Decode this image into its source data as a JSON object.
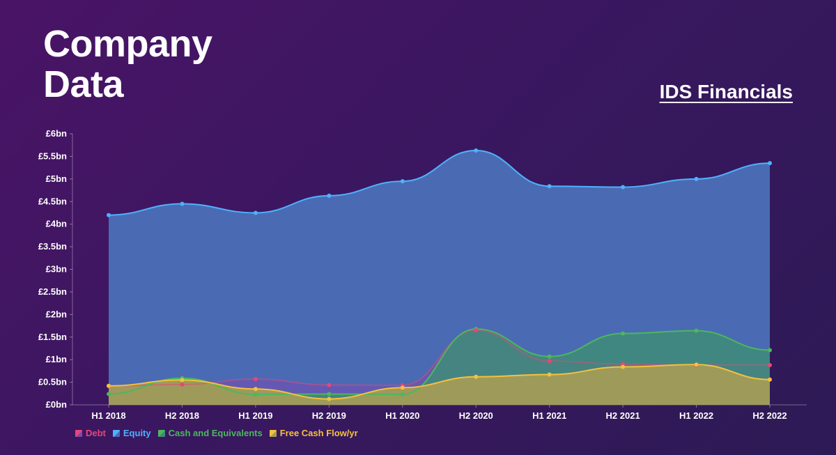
{
  "header": {
    "title_line1": "Company",
    "title_line2": "Data",
    "subtitle": "IDS Financials"
  },
  "colors": {
    "debt": "#e8457a",
    "equity": "#4db2ff",
    "cash": "#4bb85c",
    "fcf": "#f5c13c",
    "equity_fill": "#4a6bb3",
    "cash_fill": "#3f8c78",
    "fcf_fill": "#a79d55",
    "debt_fill": "#7a4ab0"
  },
  "chart_data": {
    "type": "area",
    "title": "IDS Financials",
    "categories": [
      "H1 2018",
      "H2 2018",
      "H1 2019",
      "H2 2019",
      "H1 2020",
      "H2 2020",
      "H1 2021",
      "H2 2021",
      "H1 2022",
      "H2 2022"
    ],
    "yticks": [
      "£0bn",
      "£0.5bn",
      "£1bn",
      "£1.5bn",
      "£2bn",
      "£2.5bn",
      "£3bn",
      "£3.5bn",
      "£4bn",
      "£4.5bn",
      "£5bn",
      "£5.5bn",
      "£6bn"
    ],
    "ylim": [
      0,
      6
    ],
    "series": [
      {
        "name": "Debt",
        "key": "debt",
        "values": [
          0.42,
          0.45,
          0.57,
          0.44,
          0.43,
          1.65,
          0.97,
          0.9,
          0.88,
          0.88
        ]
      },
      {
        "name": "Equity",
        "key": "equity",
        "values": [
          4.2,
          4.45,
          4.25,
          4.63,
          4.95,
          5.63,
          4.84,
          4.82,
          5.0,
          5.35
        ]
      },
      {
        "name": "Cash and Equivalents",
        "key": "cash",
        "values": [
          0.24,
          0.59,
          0.23,
          0.24,
          0.23,
          1.68,
          1.07,
          1.58,
          1.64,
          1.21
        ]
      },
      {
        "name": "Free Cash Flow/yr",
        "key": "fcf",
        "values": [
          0.42,
          0.55,
          0.35,
          0.13,
          0.38,
          0.62,
          0.67,
          0.84,
          0.89,
          0.56
        ]
      }
    ],
    "legend": [
      "Debt",
      "Equity",
      "Cash and Equivalents",
      "Free Cash Flow/yr"
    ],
    "legend_position": "bottom-left"
  }
}
